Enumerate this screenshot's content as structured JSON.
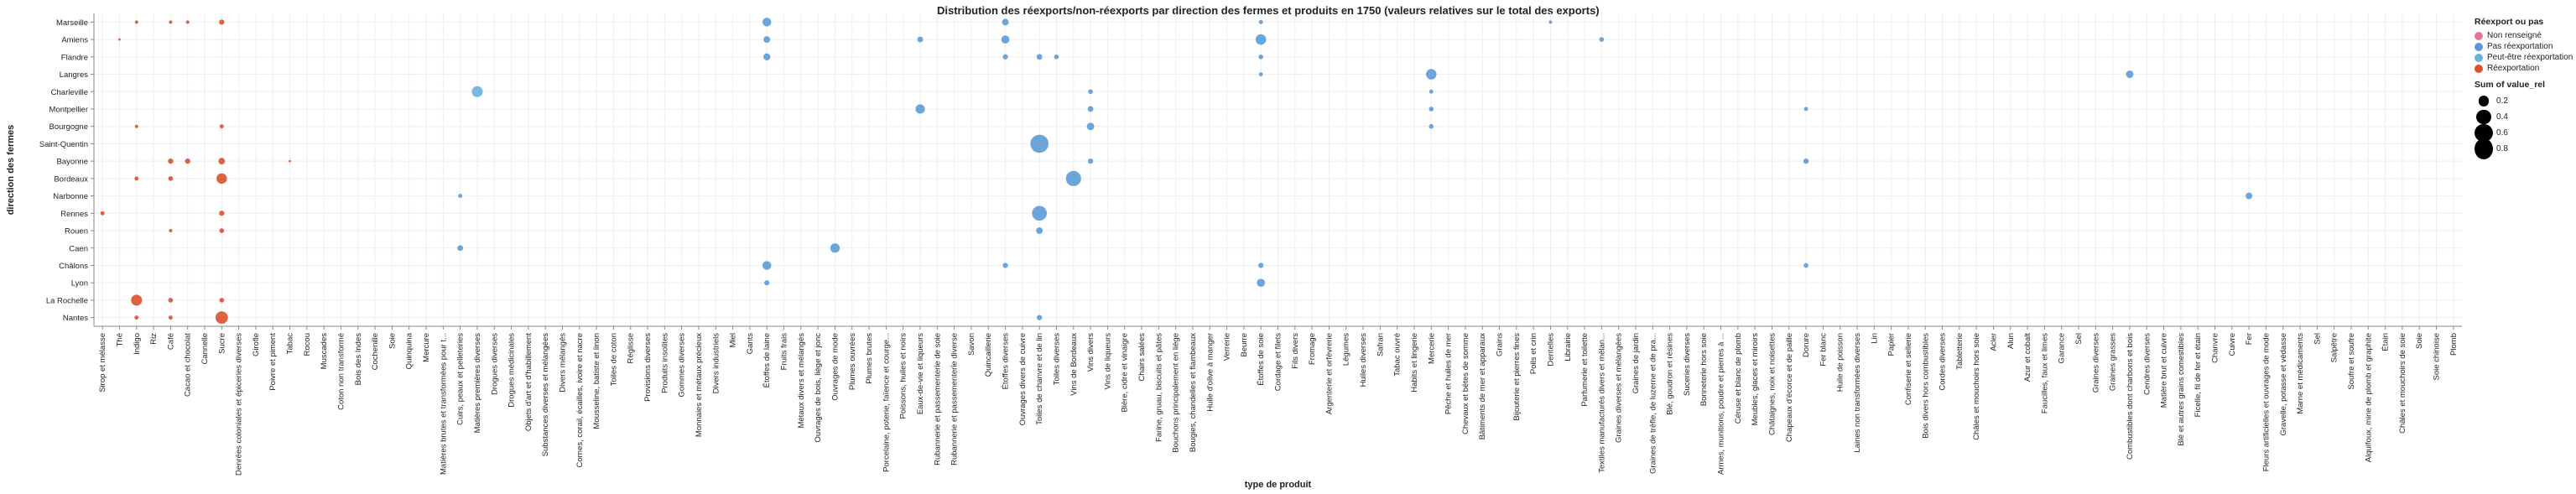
{
  "colors": {
    "Non renseigné": "#e377a3",
    "Pas réexportation": "#5b9bd5",
    "Peut-être réexportation": "#6ab0de",
    "Réexportation": "#d9512b",
    "grid": "#eeeeee",
    "axis": "#888888"
  },
  "chart_data": {
    "type": "scatter",
    "title": "Distribution des réexports/non-réexports par direction des fermes et produits en 1750 (valeurs relatives sur le total des exports)",
    "xlabel": "type de produit",
    "ylabel": "direction des fermes",
    "x_categories": [
      "Sirop et mélasse",
      "Thé",
      "Indigo",
      "Riz",
      "Café",
      "Cacao et chocolat",
      "Cannelle",
      "Sucre",
      "Denrées coloniales et épiceries diverses",
      "Girofle",
      "Poivre et piment",
      "Tabac",
      "Rocou",
      "Muscades",
      "Coton non transformé",
      "Bois des Indes",
      "Cochenille",
      "Soie",
      "Quinquina",
      "Mercure",
      "Matières brutes et transformées pour t...",
      "Cuirs, peaux et pelleteries",
      "Matières premières diverses",
      "Drogues diverses",
      "Drogues médicinales",
      "Objets d'art et d'habillement",
      "Substances diverses et mélangées",
      "Divers mélangés",
      "Cornes, corail, écailles, ivoire et nacre",
      "Mousseline, batiste et linon",
      "Toiles de coton",
      "Réglisse",
      "Provisions diverses",
      "Produits insolites",
      "Gommes diverses",
      "Monnaies et métaux précieux",
      "Divers industriels",
      "Miel",
      "Gants",
      "Étoffes de laine",
      "Fruits frais",
      "Métaux divers et mélangés",
      "Ouvrages de bois, liège et jonc",
      "Ouvrages de mode",
      "Plumes ouvrées",
      "Plumes brutes",
      "Porcelaine, poterie, faïence et courge...",
      "Poissons, huiles et noirs",
      "Eaux-de-vie et liqueurs",
      "Rubannerie et passementerie de soie",
      "Rubannerie et passementerie diverse",
      "Savon",
      "Quincaillerie",
      "Étoffes diverses",
      "Ouvrages divers de cuivre",
      "Toiles de chanvre et de lin",
      "Toiles diverses",
      "Vins de Bordeaux",
      "Vins divers",
      "Vins de liqueurs",
      "Bière, cidre et vinaigre",
      "Chairs salées",
      "Farine, gruau, biscuits et pâtes",
      "Bouchons principalement en liège",
      "Bougies, chandelles et flambeaux",
      "Huile d'olive à manger",
      "Verrerie",
      "Beurre",
      "Étoffes de soie",
      "Cordage et filets",
      "Fils divers",
      "Fromage",
      "Argenterie et orfèvrerie",
      "Légumes",
      "Huiles diverses",
      "Safran",
      "Tabac ouvré",
      "Habits et lingerie",
      "Mercerie",
      "Pêche et huiles de mer",
      "Chevaux et bêtes de somme",
      "Bâtiments de mer et apparaux",
      "Grains",
      "Bijouterie et pierres fines",
      "Poils et crin",
      "Dentelles",
      "Librairie",
      "Parfumerie et toilette",
      "Textiles manufacturés divers et mélan...",
      "Graines diverses et mélangées",
      "Graines de jardin",
      "Graines de trèfle, de luzerne et de pra...",
      "Blé, goudron et résines",
      "Suceries diverses",
      "Bonneterie hors soie",
      "Armes, munitions, poudre et pierres à ...",
      "Céruse et blanc de plomb",
      "Meubles, glaces et miroirs",
      "Châtaignes, noix et noisettes",
      "Chapeaux d'écorce et de paille",
      "Dorure",
      "Fer blanc",
      "Huile de poisson",
      "Laines non transformées diverses",
      "Lin",
      "Papier",
      "Confiserie et sellerie",
      "Bois divers hors combustibles",
      "Cordes diverses",
      "Tabletterie",
      "Châles et mouchoirs hors soie",
      "Acier",
      "Alun",
      "Azur et cobalt",
      "Faucilles, faux et limes",
      "Garance",
      "Sel",
      "Graines diverses",
      "Graines grasses",
      "Combustibles dont charbons et bois",
      "Cendres diverses",
      "Matière brut et cuivre",
      "Blé et autres grains comestibles",
      "Ficelle, fil de fer et étain",
      "Chanvre",
      "Cuivre",
      "Fer",
      "Fleurs artificielles et ouvrages de mode",
      "Gravelle, potasse et védasse",
      "Marne et médicaments",
      "Sel",
      "Salpêtre",
      "Soufre et soufre",
      "Alquifoux, mine de plomb et graphite",
      "Étain",
      "Châles et mouchoirs de soie",
      "Soie",
      "Soie chinoise",
      "Plomb"
    ],
    "x_tick_labels": [
      "Sirop et mélasse",
      "Thé",
      "Indigo",
      "Riz",
      "Café",
      "Cacao et chocolat",
      "Cannelle",
      "Sucre",
      "Denrées coloniales et épiceries diverses",
      "Girofle",
      "Poivre et piment",
      "Tabac",
      "Rocou",
      "Muscades",
      "Coton non transformé",
      "Bois des Indes",
      "Cochenille",
      "Soie",
      "Quinquina",
      "Mercure",
      "Matières brutes et transformées pour t...",
      "Cuirs, peaux et pelleteries",
      "Matières premières diverses",
      "Drogues diverses",
      "Drogues médicinales",
      "Objets d'art et d'habillement",
      "Substances diverses et mélangées",
      "Divers mélangés",
      "Cornes, corail, écailles, ivoire et nacre",
      "Mousseline, batiste et linon",
      "Toiles de coton",
      "Réglisse",
      "Provisions diverses",
      "Produits insolites",
      "Gommes diverses",
      "Monnaies et métaux précieux",
      "Divers industriels",
      "Miel",
      "Gants",
      "Étoffes de laine",
      "Fruits frais",
      "Métaux divers et mélangés",
      "Ouvrages de bois, liège et jonc",
      "Ouvrages de mode",
      "Plumes ouvrées",
      "Plumes brutes",
      "Porcelaine, poterie, faïence et courge...",
      "Poissons, huiles et noirs",
      "Eaux-de-vie et liqueurs",
      "Rubannerie et passementerie de soie",
      "Rubannerie et passementerie diverse",
      "Savon",
      "Quincaillerie",
      "Étoffes diverses",
      "Ouvrages divers de cuivre",
      "Toiles de chanvre et de lin",
      "Toiles diverses",
      "Vins de Bordeaux",
      "Vins divers",
      "Vins de liqueurs",
      "Bière, cidre et vinaigre",
      "Chairs salées",
      "Farine, gruau, biscuits et pâtes",
      "Bouchons principalement en liège",
      "Bougies, chandelles et flambeaux",
      "Huile d'olive à manger",
      "Verrerie",
      "Beurre",
      "Étoffes de soie",
      "Cordage et filets",
      "Fils divers",
      "Fromage",
      "Argenterie et orfèvrerie",
      "Légumes",
      "Huiles diverses",
      "Safran",
      "Tabac ouvré",
      "Habits et lingerie",
      "Mercerie",
      "Pêche et huiles de mer",
      "Chevaux et bêtes de somme",
      "Bâtiments de mer et apparaux",
      "Grains",
      "Bijouterie et pierres fines",
      "Poils et crin",
      "Dentelles",
      "Librairie",
      "Parfumerie et toilette",
      "Textiles manufacturés divers et mélan...",
      "Graines diverses et mélangées",
      "Graines de jardin",
      "Graines de trèfle, de luzerne et de pra...",
      "Blé, goudron et résines",
      "Suceries diverses",
      "Bonneterie hors soie",
      "Armes, munitions, poudre et pierres à ...",
      "Céruse et blanc de plomb",
      "Meubles, glaces et miroirs",
      "Châtaignes, noix et noisettes",
      "Chapeaux d'écorce et de paille",
      "Dorure",
      "Fer blanc",
      "Huile de poisson",
      "Laines non transformées diverses",
      "Lin",
      "Papier",
      "Confiserie et sellerie",
      "Bois divers hors combustibles",
      "Cordes diverses",
      "Tabletterie",
      "Châles et mouchoirs hors soie",
      "Acier",
      "Alun",
      "Azur et cobalt",
      "Faucilles, faux et limes",
      "Garance",
      "Sel",
      "Graines diverses",
      "Graines grasses",
      "Combustibles dont charbons et bois",
      "Cendres diverses",
      "Matière brut et cuivre",
      "Blé et autres grains comestibles",
      "Ficelle, fil de fer et étain",
      "Chanvre",
      "Cuivre",
      "Fer",
      "Fleurs artificielles et ouvrages de mode",
      "Gravelle, potasse et védasse",
      "Marne et médicaments",
      "Sel",
      "Salpêtre",
      "Soufre et soufre",
      "Alquifoux, mine de plomb et graphite",
      "Étain",
      "Châles et mouchoirs de soie",
      "Soie",
      "Soie chinoise",
      "Plomb"
    ],
    "y_categories": [
      "Marseille",
      "Amiens",
      "Flandre",
      "Langres",
      "Charleville",
      "Montpellier",
      "Bourgogne",
      "Saint-Quentin",
      "Bayonne",
      "Bordeaux",
      "Narbonne",
      "Rennes",
      "Rouen",
      "Caen",
      "Châlons",
      "Lyon",
      "La Rochelle",
      "Nantes"
    ],
    "size_field": "Sum of value_rel",
    "color_field": "Réexport ou pas",
    "legend_color": [
      "Non renseigné",
      "Pas réexportation",
      "Peut-être réexportation",
      "Réexportation"
    ],
    "legend_size": [
      0.2,
      0.4,
      0.6,
      0.8
    ],
    "legend_position": "right",
    "grid": true,
    "points": [
      {
        "x": "Indigo",
        "y": "Marseille",
        "value": 0.02,
        "category": "Réexportation"
      },
      {
        "x": "Café",
        "y": "Marseille",
        "value": 0.02,
        "category": "Réexportation"
      },
      {
        "x": "Cacao et chocolat",
        "y": "Marseille",
        "value": 0.02,
        "category": "Réexportation"
      },
      {
        "x": "Sucre",
        "y": "Marseille",
        "value": 0.05,
        "category": "Réexportation"
      },
      {
        "x": "Étoffes de laine",
        "y": "Marseille",
        "value": 0.14,
        "category": "Pas réexportation"
      },
      {
        "x": "Étoffes diverses",
        "y": "Marseille",
        "value": 0.08,
        "category": "Pas réexportation"
      },
      {
        "x": "Étoffes de soie",
        "y": "Marseille",
        "value": 0.03,
        "category": "Pas réexportation"
      },
      {
        "x": "Dentelles",
        "y": "Marseille",
        "value": 0.02,
        "category": "Pas réexportation"
      },
      {
        "x": "Thé",
        "y": "Amiens",
        "value": 0.01,
        "category": "Réexportation"
      },
      {
        "x": "Étoffes de laine",
        "y": "Amiens",
        "value": 0.08,
        "category": "Pas réexportation"
      },
      {
        "x": "Eaux-de-vie et liqueurs",
        "y": "Amiens",
        "value": 0.06,
        "category": "Pas réexportation"
      },
      {
        "x": "Étoffes diverses",
        "y": "Amiens",
        "value": 0.12,
        "category": "Pas réexportation"
      },
      {
        "x": "Étoffes de soie",
        "y": "Amiens",
        "value": 0.2,
        "category": "Pas réexportation"
      },
      {
        "x": "Textiles manufacturés divers et mélan...",
        "y": "Amiens",
        "value": 0.04,
        "category": "Pas réexportation"
      },
      {
        "x": "Étoffes de laine",
        "y": "Flandre",
        "value": 0.09,
        "category": "Pas réexportation"
      },
      {
        "x": "Étoffes diverses",
        "y": "Flandre",
        "value": 0.05,
        "category": "Pas réexportation"
      },
      {
        "x": "Toiles de chanvre et de lin",
        "y": "Flandre",
        "value": 0.06,
        "category": "Pas réexportation"
      },
      {
        "x": "Toiles diverses",
        "y": "Flandre",
        "value": 0.04,
        "category": "Pas réexportation"
      },
      {
        "x": "Étoffes de soie",
        "y": "Flandre",
        "value": 0.04,
        "category": "Pas réexportation"
      },
      {
        "x": "Mercerie",
        "y": "Langres",
        "value": 0.2,
        "category": "Pas réexportation"
      },
      {
        "x": "Combustibles dont charbons et bois",
        "y": "Langres",
        "value": 0.1,
        "category": "Pas réexportation"
      },
      {
        "x": "Étoffes de soie",
        "y": "Langres",
        "value": 0.03,
        "category": "Pas réexportation"
      },
      {
        "x": "Matières premières diverses",
        "y": "Charleville",
        "value": 0.22,
        "category": "Peut-être réexportation"
      },
      {
        "x": "Vins divers",
        "y": "Charleville",
        "value": 0.04,
        "category": "Pas réexportation"
      },
      {
        "x": "Mercerie",
        "y": "Charleville",
        "value": 0.03,
        "category": "Pas réexportation"
      },
      {
        "x": "Eaux-de-vie et liqueurs",
        "y": "Montpellier",
        "value": 0.16,
        "category": "Pas réexportation"
      },
      {
        "x": "Vins divers",
        "y": "Montpellier",
        "value": 0.06,
        "category": "Pas réexportation"
      },
      {
        "x": "Mercerie",
        "y": "Montpellier",
        "value": 0.04,
        "category": "Pas réexportation"
      },
      {
        "x": "Dorure",
        "y": "Montpellier",
        "value": 0.03,
        "category": "Pas réexportation"
      },
      {
        "x": "Indigo",
        "y": "Bourgogne",
        "value": 0.02,
        "category": "Réexportation"
      },
      {
        "x": "Sucre",
        "y": "Bourgogne",
        "value": 0.03,
        "category": "Réexportation"
      },
      {
        "x": "Vins divers",
        "y": "Bourgogne",
        "value": 0.1,
        "category": "Pas réexportation"
      },
      {
        "x": "Mercerie",
        "y": "Bourgogne",
        "value": 0.04,
        "category": "Pas réexportation"
      },
      {
        "x": "Toiles de chanvre et de lin",
        "y": "Saint-Quentin",
        "value": 0.6,
        "category": "Pas réexportation"
      },
      {
        "x": "Sucre",
        "y": "Bayonne",
        "value": 0.08,
        "category": "Réexportation"
      },
      {
        "x": "Café",
        "y": "Bayonne",
        "value": 0.05,
        "category": "Réexportation"
      },
      {
        "x": "Cacao et chocolat",
        "y": "Bayonne",
        "value": 0.05,
        "category": "Réexportation"
      },
      {
        "x": "Tabac",
        "y": "Bayonne",
        "value": 0.01,
        "category": "Réexportation"
      },
      {
        "x": "Vins divers",
        "y": "Bayonne",
        "value": 0.05,
        "category": "Pas réexportation"
      },
      {
        "x": "Dorure",
        "y": "Bayonne",
        "value": 0.05,
        "category": "Pas réexportation"
      },
      {
        "x": "Indigo",
        "y": "Bordeaux",
        "value": 0.03,
        "category": "Réexportation"
      },
      {
        "x": "Café",
        "y": "Bordeaux",
        "value": 0.04,
        "category": "Réexportation"
      },
      {
        "x": "Sucre",
        "y": "Bordeaux",
        "value": 0.2,
        "category": "Réexportation"
      },
      {
        "x": "Vins de Bordeaux",
        "y": "Bordeaux",
        "value": 0.42,
        "category": "Pas réexportation"
      },
      {
        "x": "Cuirs, peaux et pelleteries",
        "y": "Narbonne",
        "value": 0.03,
        "category": "Pas réexportation"
      },
      {
        "x": "Fer",
        "y": "Narbonne",
        "value": 0.08,
        "category": "Pas réexportation"
      },
      {
        "x": "Sirop et mélasse",
        "y": "Rennes",
        "value": 0.03,
        "category": "Réexportation"
      },
      {
        "x": "Sucre",
        "y": "Rennes",
        "value": 0.05,
        "category": "Réexportation"
      },
      {
        "x": "Toiles de chanvre et de lin",
        "y": "Rennes",
        "value": 0.4,
        "category": "Pas réexportation"
      },
      {
        "x": "Café",
        "y": "Rouen",
        "value": 0.02,
        "category": "Réexportation"
      },
      {
        "x": "Sucre",
        "y": "Rouen",
        "value": 0.04,
        "category": "Réexportation"
      },
      {
        "x": "Toiles de chanvre et de lin",
        "y": "Rouen",
        "value": 0.08,
        "category": "Pas réexportation"
      },
      {
        "x": "Cuirs, peaux et pelleteries",
        "y": "Caen",
        "value": 0.06,
        "category": "Pas réexportation"
      },
      {
        "x": "Ouvrages de mode",
        "y": "Caen",
        "value": 0.16,
        "category": "Pas réexportation"
      },
      {
        "x": "Étoffes de laine",
        "y": "Châlons",
        "value": 0.14,
        "category": "Pas réexportation"
      },
      {
        "x": "Étoffes diverses",
        "y": "Châlons",
        "value": 0.05,
        "category": "Pas réexportation"
      },
      {
        "x": "Étoffes de soie",
        "y": "Châlons",
        "value": 0.05,
        "category": "Pas réexportation"
      },
      {
        "x": "Dorure",
        "y": "Châlons",
        "value": 0.04,
        "category": "Pas réexportation"
      },
      {
        "x": "Étoffes de laine",
        "y": "Lyon",
        "value": 0.05,
        "category": "Pas réexportation"
      },
      {
        "x": "Étoffes de soie",
        "y": "Lyon",
        "value": 0.12,
        "category": "Pas réexportation"
      },
      {
        "x": "Indigo",
        "y": "La Rochelle",
        "value": 0.22,
        "category": "Réexportation"
      },
      {
        "x": "Café",
        "y": "La Rochelle",
        "value": 0.04,
        "category": "Réexportation"
      },
      {
        "x": "Sucre",
        "y": "La Rochelle",
        "value": 0.04,
        "category": "Réexportation"
      },
      {
        "x": "Indigo",
        "y": "Nantes",
        "value": 0.03,
        "category": "Réexportation"
      },
      {
        "x": "Café",
        "y": "Nantes",
        "value": 0.03,
        "category": "Réexportation"
      },
      {
        "x": "Sucre",
        "y": "Nantes",
        "value": 0.28,
        "category": "Réexportation"
      },
      {
        "x": "Toiles de chanvre et de lin",
        "y": "Nantes",
        "value": 0.05,
        "category": "Pas réexportation"
      }
    ]
  }
}
